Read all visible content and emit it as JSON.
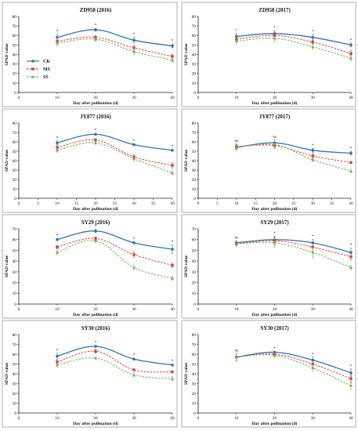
{
  "legend": {
    "entries": [
      {
        "name": "CK",
        "color": "#2E75B6",
        "marker": "circle",
        "line": "solid"
      },
      {
        "name": "MS",
        "color": "#E03C3C",
        "marker": "square",
        "line": "dashed"
      },
      {
        "name": "SS",
        "color": "#70AD47",
        "marker": "triangle",
        "line": "dashed"
      }
    ]
  },
  "chart_data": [
    {
      "type": "line",
      "title": "ZD958 (2016)",
      "xlabel": "Day after pollination (d)",
      "ylabel": "SPAD value",
      "xlim": [
        0,
        40
      ],
      "ylim": [
        0,
        80
      ],
      "xticks": [
        0,
        10,
        20,
        30,
        40
      ],
      "yticks": [
        0,
        10,
        20,
        30,
        40,
        50,
        60,
        70,
        80
      ],
      "x": [
        10,
        20,
        30,
        40
      ],
      "series": [
        {
          "name": "CK",
          "values": [
            58,
            66,
            55,
            49
          ],
          "errors": [
            3,
            1.5,
            3,
            2
          ]
        },
        {
          "name": "MS",
          "values": [
            54,
            58,
            47,
            38
          ],
          "errors": [
            3,
            2,
            2.5,
            2
          ]
        },
        {
          "name": "SS",
          "values": [
            52,
            56,
            43,
            34
          ],
          "errors": [
            3,
            2,
            3,
            2
          ]
        }
      ],
      "significance": [
        "*",
        "*",
        "*",
        "*"
      ],
      "legend": "left"
    },
    {
      "type": "line",
      "title": "ZD958 (2017)",
      "xlabel": "Day after pollination (d)",
      "ylabel": "SPAD value",
      "xlim": [
        0,
        40
      ],
      "ylim": [
        0,
        80
      ],
      "xticks": [
        0,
        10,
        20,
        30,
        40
      ],
      "yticks": [
        0,
        10,
        20,
        30,
        40,
        50,
        60,
        70,
        80
      ],
      "x": [
        10,
        20,
        30,
        40
      ],
      "series": [
        {
          "name": "CK",
          "values": [
            59,
            62,
            58,
            50
          ],
          "errors": [
            3,
            3,
            3,
            2
          ]
        },
        {
          "name": "MS",
          "values": [
            56,
            60,
            53,
            41
          ],
          "errors": [
            3,
            3,
            2.5,
            3
          ]
        },
        {
          "name": "SS",
          "values": [
            54,
            57,
            48,
            36
          ],
          "errors": [
            3,
            3,
            2.5,
            3
          ]
        }
      ],
      "significance": [
        "*",
        "*",
        "*",
        "*"
      ]
    },
    {
      "type": "line",
      "title": "JY877 (2016)",
      "xlabel": "Day after pollination (d)",
      "ylabel": "SPAD value",
      "xlim": [
        0,
        40
      ],
      "ylim": [
        0,
        80
      ],
      "xticks": [
        0,
        5,
        10,
        15,
        20,
        25,
        30,
        35,
        40
      ],
      "yticks": [
        0,
        10,
        20,
        30,
        40,
        50,
        60,
        70,
        80
      ],
      "x": [
        10,
        20,
        30,
        40
      ],
      "series": [
        {
          "name": "CK",
          "values": [
            59,
            68,
            57,
            51
          ],
          "errors": [
            2,
            1,
            1,
            1
          ]
        },
        {
          "name": "MS",
          "values": [
            54,
            62,
            44,
            35
          ],
          "errors": [
            2,
            1.5,
            2,
            3
          ]
        },
        {
          "name": "SS",
          "values": [
            51,
            59,
            42,
            27
          ],
          "errors": [
            2,
            1.5,
            2,
            2
          ]
        }
      ],
      "significance": [
        "*",
        "*",
        "*",
        "*"
      ]
    },
    {
      "type": "line",
      "title": "JY877 (2017)",
      "xlabel": "Day after pollination (d)",
      "ylabel": "SPAD value",
      "xlim": [
        0,
        40
      ],
      "ylim": [
        0,
        80
      ],
      "xticks": [
        0,
        5,
        10,
        15,
        20,
        25,
        30,
        35,
        40
      ],
      "yticks": [
        0,
        10,
        20,
        30,
        40,
        50,
        60,
        70,
        80
      ],
      "x": [
        10,
        20,
        30,
        40
      ],
      "series": [
        {
          "name": "CK",
          "values": [
            54,
            59,
            51,
            48
          ],
          "errors": [
            3,
            3,
            2,
            2
          ]
        },
        {
          "name": "MS",
          "values": [
            55,
            56,
            45,
            38
          ],
          "errors": [
            3,
            3,
            2.5,
            1
          ]
        },
        {
          "name": "SS",
          "values": [
            54,
            57,
            41,
            29
          ],
          "errors": [
            3,
            3,
            2,
            2
          ]
        }
      ],
      "significance": [
        "ns",
        "ns",
        "*",
        "*"
      ]
    },
    {
      "type": "line",
      "title": "SY29 (2016)",
      "xlabel": "Day after pollination (d)",
      "ylabel": "SPAD value",
      "xlim": [
        0,
        40
      ],
      "ylim": [
        0,
        70
      ],
      "xticks": [
        0,
        10,
        20,
        30,
        40
      ],
      "yticks": [
        0,
        10,
        20,
        30,
        40,
        50,
        60,
        70
      ],
      "x": [
        10,
        20,
        30,
        40
      ],
      "series": [
        {
          "name": "CK",
          "values": [
            60,
            68,
            57,
            51
          ],
          "errors": [
            1,
            1.5,
            1,
            4
          ]
        },
        {
          "name": "MS",
          "values": [
            53,
            61,
            46,
            36
          ],
          "errors": [
            1.5,
            1.5,
            2.5,
            2
          ]
        },
        {
          "name": "SS",
          "values": [
            48,
            59,
            34,
            24
          ],
          "errors": [
            2,
            1.5,
            2,
            2
          ]
        }
      ],
      "significance": [
        "*",
        "*",
        "*",
        "*"
      ]
    },
    {
      "type": "line",
      "title": "SY29 (2017)",
      "xlabel": "Day after pollination (d)",
      "ylabel": "SPAD value",
      "xlim": [
        0,
        40
      ],
      "ylim": [
        0,
        70
      ],
      "xticks": [
        0,
        10,
        20,
        30,
        40
      ],
      "yticks": [
        0,
        10,
        20,
        30,
        40,
        50,
        60,
        70
      ],
      "x": [
        10,
        20,
        30,
        40
      ],
      "series": [
        {
          "name": "CK",
          "values": [
            57,
            60,
            57,
            48
          ],
          "errors": [
            2,
            3,
            3,
            4
          ]
        },
        {
          "name": "MS",
          "values": [
            56,
            59,
            53,
            44
          ],
          "errors": [
            2,
            4,
            4,
            3
          ]
        },
        {
          "name": "SS",
          "values": [
            56,
            57,
            48,
            34
          ],
          "errors": [
            2,
            4,
            5,
            2
          ]
        }
      ],
      "significance": [
        "ns",
        "*",
        "*",
        "*"
      ]
    },
    {
      "type": "line",
      "title": "SY30 (2016)",
      "xlabel": "Day after pollination (d)",
      "ylabel": "SPAD value",
      "xlim": [
        0,
        40
      ],
      "ylim": [
        0,
        80
      ],
      "xticks": [
        0,
        10,
        20,
        30,
        40
      ],
      "yticks": [
        0,
        10,
        20,
        30,
        40,
        50,
        60,
        70,
        80
      ],
      "x": [
        10,
        20,
        30,
        40
      ],
      "series": [
        {
          "name": "CK",
          "values": [
            58,
            68,
            55,
            49
          ],
          "errors": [
            3,
            1,
            1,
            1
          ]
        },
        {
          "name": "MS",
          "values": [
            52,
            63,
            44,
            42
          ],
          "errors": [
            2,
            2,
            1,
            1
          ]
        },
        {
          "name": "SS",
          "values": [
            49,
            56,
            39,
            35
          ],
          "errors": [
            2,
            1,
            2,
            2
          ]
        }
      ],
      "significance": [
        "*",
        "*",
        "*",
        "*"
      ]
    },
    {
      "type": "line",
      "title": "SY30 (2017)",
      "xlabel": "Day after pollination (d)",
      "ylabel": "SPAD value",
      "xlim": [
        0,
        40
      ],
      "ylim": [
        0,
        80
      ],
      "xticks": [
        0,
        10,
        20,
        30,
        40
      ],
      "yticks": [
        0,
        10,
        20,
        30,
        40,
        50,
        60,
        70,
        80
      ],
      "x": [
        10,
        20,
        30,
        40
      ],
      "series": [
        {
          "name": "CK",
          "values": [
            57,
            62,
            54,
            41
          ],
          "errors": [
            4,
            1,
            3,
            4
          ]
        },
        {
          "name": "MS",
          "values": [
            57,
            60,
            50,
            35
          ],
          "errors": [
            4,
            2,
            3,
            4
          ]
        },
        {
          "name": "SS",
          "values": [
            57,
            59,
            46,
            28
          ],
          "errors": [
            4,
            2,
            3,
            4
          ]
        }
      ],
      "significance": [
        "ns",
        "*",
        "*",
        "*"
      ]
    }
  ]
}
